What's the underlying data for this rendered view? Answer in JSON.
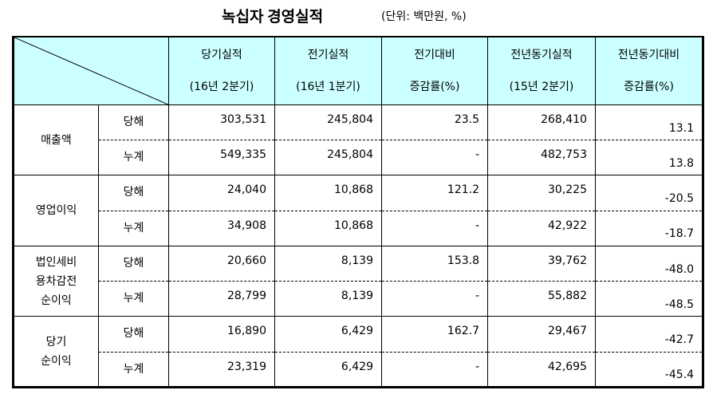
{
  "header": {
    "title": "녹십자 경영실적",
    "unit": "(단위: 백만원, %)"
  },
  "table": {
    "columns": [
      {
        "line1": "당기실적",
        "line2": "(16년 2분기)"
      },
      {
        "line1": "전기실적",
        "line2": "(16년 1분기)"
      },
      {
        "line1": "전기대비",
        "line2": "증감률(%)"
      },
      {
        "line1": "전년동기실적",
        "line2": "(15년 2분기)"
      },
      {
        "line1": "전년동기대비",
        "line2": "증감률(%)"
      }
    ],
    "groups": [
      {
        "label": [
          "매출액"
        ],
        "rows": [
          {
            "kind": "당해",
            "values": [
              "303,531",
              "245,804",
              "23.5",
              "268,410",
              "13.1"
            ]
          },
          {
            "kind": "누계",
            "values": [
              "549,335",
              "245,804",
              "-",
              "482,753",
              "13.8"
            ]
          }
        ]
      },
      {
        "label": [
          "영업이익"
        ],
        "rows": [
          {
            "kind": "당해",
            "values": [
              "24,040",
              "10,868",
              "121.2",
              "30,225",
              "-20.5"
            ]
          },
          {
            "kind": "누계",
            "values": [
              "34,908",
              "10,868",
              "-",
              "42,922",
              "-18.7"
            ]
          }
        ]
      },
      {
        "label": [
          "법인세비",
          "용차감전",
          "순이익"
        ],
        "rows": [
          {
            "kind": "당해",
            "values": [
              "20,660",
              "8,139",
              "153.8",
              "39,762",
              "-48.0"
            ]
          },
          {
            "kind": "누계",
            "values": [
              "28,799",
              "8,139",
              "-",
              "55,882",
              "-48.5"
            ]
          }
        ]
      },
      {
        "label": [
          "당기",
          "순이익"
        ],
        "rows": [
          {
            "kind": "당해",
            "values": [
              "16,890",
              "6,429",
              "162.7",
              "29,467",
              "-42.7"
            ]
          },
          {
            "kind": "누계",
            "values": [
              "23,319",
              "6,429",
              "-",
              "42,695",
              "-45.4"
            ]
          }
        ]
      }
    ]
  }
}
